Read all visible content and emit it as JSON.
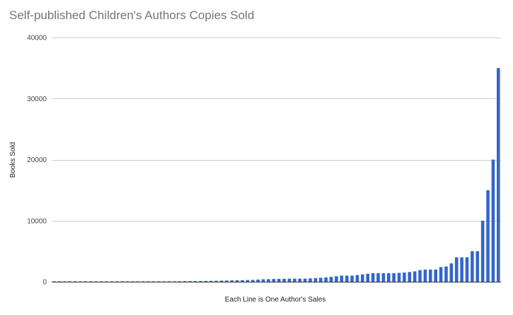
{
  "chart_data": {
    "type": "bar",
    "title": "Self-published Children's Authors Copies Sold",
    "xlabel": "Each Line is One Author's Sales",
    "ylabel": "Books Sold",
    "ylim": [
      0,
      40000
    ],
    "yticks": [
      "0",
      "10000",
      "20000",
      "30000",
      "40000"
    ],
    "grid": true,
    "bar_color": "#3366cc",
    "values": [
      5,
      5,
      5,
      5,
      5,
      5,
      5,
      5,
      5,
      5,
      5,
      5,
      5,
      5,
      5,
      5,
      5,
      5,
      20,
      30,
      40,
      50,
      60,
      70,
      80,
      90,
      100,
      110,
      120,
      130,
      150,
      160,
      180,
      200,
      220,
      240,
      260,
      280,
      300,
      350,
      400,
      420,
      450,
      470,
      480,
      500,
      500,
      500,
      500,
      550,
      600,
      650,
      700,
      800,
      900,
      1000,
      1000,
      1000,
      1100,
      1200,
      1300,
      1400,
      1400,
      1400,
      1400,
      1400,
      1450,
      1500,
      1600,
      1700,
      1900,
      2000,
      2000,
      2000,
      2400,
      2500,
      3000,
      4000,
      4000,
      4000,
      5000,
      5000,
      10000,
      15000,
      20000,
      35000
    ]
  }
}
